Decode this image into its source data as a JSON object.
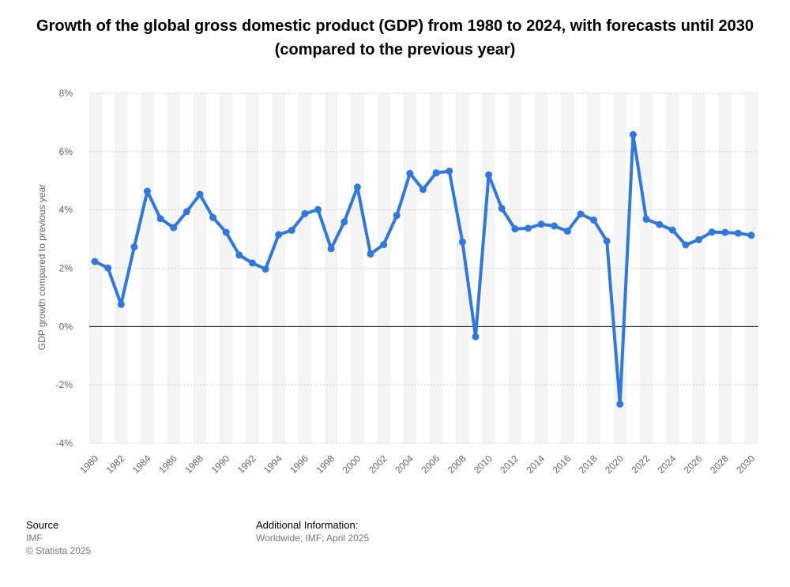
{
  "title": "Growth of the global gross domestic product (GDP) from 1980 to 2024, with forecasts until 2030 (compared to the previous year)",
  "footer": {
    "source_heading": "Source",
    "source_name": "IMF",
    "copyright": "© Statista 2025",
    "info_heading": "Additional Information:",
    "info_text": "Worldwide; IMF; April 2025"
  },
  "colors": {
    "line": "#2f78df",
    "zero_line": "#000000",
    "band": "#f4f4f4",
    "grid": "#d0d0d0",
    "tick_text": "#666666"
  },
  "chart_data": {
    "type": "line",
    "ylabel": "GDP growth compared to previous year",
    "xlabel": "",
    "ylim": [
      -4,
      8
    ],
    "yticks": [
      -4,
      -2,
      0,
      2,
      4,
      6,
      8
    ],
    "ytick_labels": [
      "-4%",
      "-2%",
      "0%",
      "2%",
      "4%",
      "6%",
      "8%"
    ],
    "x_tick_labels": [
      "1980",
      "1982",
      "1984",
      "1986",
      "1988",
      "1990",
      "1992",
      "1994",
      "1996",
      "1998",
      "2000",
      "2002",
      "2004",
      "2006",
      "2008",
      "2010",
      "2012",
      "2014",
      "2016",
      "2018",
      "2020",
      "2022",
      "2024",
      "2026",
      "2028",
      "2030"
    ],
    "grid": true,
    "series": [
      {
        "x": [
          1980,
          1981,
          1982,
          1983,
          1984,
          1985,
          1986,
          1987,
          1988,
          1989,
          1990,
          1991,
          1992,
          1993,
          1994,
          1995,
          1996,
          1997,
          1998,
          1999,
          2000,
          2001,
          2002,
          2003,
          2004,
          2005,
          2006,
          2007,
          2008,
          2009,
          2010,
          2011,
          2012,
          2013,
          2014,
          2015,
          2016,
          2017,
          2018,
          2019,
          2020,
          2021,
          2022,
          2023,
          2024,
          2025,
          2026,
          2027,
          2028,
          2029,
          2030
        ],
        "values": [
          2.23,
          2.01,
          0.76,
          2.73,
          4.64,
          3.7,
          3.39,
          3.94,
          4.53,
          3.74,
          3.23,
          2.45,
          2.18,
          1.97,
          3.15,
          3.3,
          3.87,
          4.01,
          2.67,
          3.59,
          4.78,
          2.49,
          2.81,
          3.81,
          5.25,
          4.7,
          5.27,
          5.33,
          2.9,
          -0.35,
          5.2,
          4.05,
          3.35,
          3.37,
          3.51,
          3.45,
          3.27,
          3.86,
          3.65,
          2.93,
          -2.66,
          6.58,
          3.68,
          3.5,
          3.31,
          2.8,
          2.98,
          3.24,
          3.23,
          3.2,
          3.13
        ]
      }
    ]
  }
}
